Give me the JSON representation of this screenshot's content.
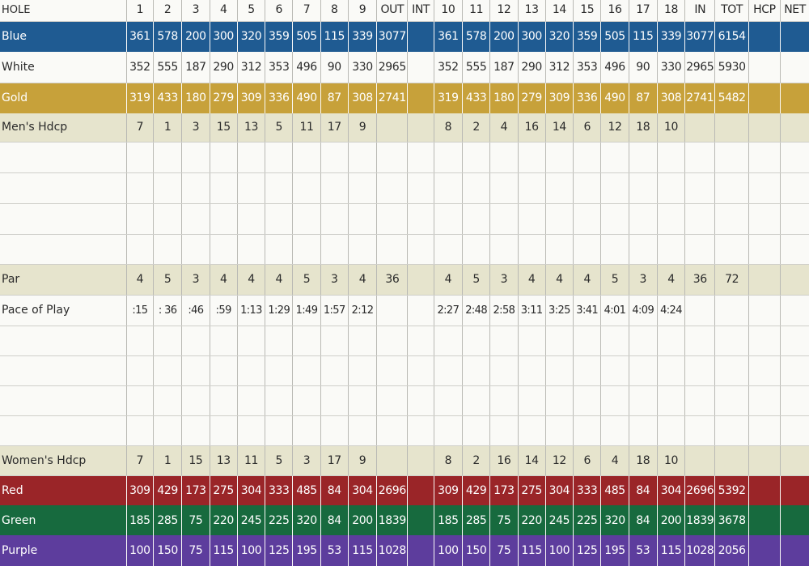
{
  "colors": {
    "blue": "#1f5b92",
    "gold": "#c7a13a",
    "red": "#9a2528",
    "green": "#176a3e",
    "purple": "#5d3d9d",
    "beige": "#e6e4cd",
    "white": "#fafaf7"
  },
  "header": [
    "HOLE",
    "1",
    "2",
    "3",
    "4",
    "5",
    "6",
    "7",
    "8",
    "9",
    "OUT",
    "INT",
    "10",
    "11",
    "12",
    "13",
    "14",
    "15",
    "16",
    "17",
    "18",
    "IN",
    "TOT",
    "HCP",
    "NET"
  ],
  "rows": [
    {
      "key": "blue",
      "style": "blue",
      "label": "Blue",
      "cells": [
        "361",
        "578",
        "200",
        "300",
        "320",
        "359",
        "505",
        "115",
        "339",
        "3077",
        "",
        "361",
        "578",
        "200",
        "300",
        "320",
        "359",
        "505",
        "115",
        "339",
        "3077",
        "6154",
        "",
        ""
      ]
    },
    {
      "key": "white",
      "style": "white",
      "label": "White",
      "cells": [
        "352",
        "555",
        "187",
        "290",
        "312",
        "353",
        "496",
        "90",
        "330",
        "2965",
        "",
        "352",
        "555",
        "187",
        "290",
        "312",
        "353",
        "496",
        "90",
        "330",
        "2965",
        "5930",
        "",
        ""
      ]
    },
    {
      "key": "gold",
      "style": "gold",
      "label": "Gold",
      "cells": [
        "319",
        "433",
        "180",
        "279",
        "309",
        "336",
        "490",
        "87",
        "308",
        "2741",
        "",
        "319",
        "433",
        "180",
        "279",
        "309",
        "336",
        "490",
        "87",
        "308",
        "2741",
        "5482",
        "",
        ""
      ]
    },
    {
      "key": "mens_hdcp",
      "style": "beige",
      "label": "Men's Hdcp",
      "cells": [
        "7",
        "1",
        "3",
        "15",
        "13",
        "5",
        "11",
        "17",
        "9",
        "",
        "",
        "8",
        "2",
        "4",
        "16",
        "14",
        "6",
        "12",
        "18",
        "10",
        "",
        "",
        "",
        ""
      ]
    },
    {
      "key": "blank_1",
      "style": "white",
      "label": "",
      "cells": [
        "",
        "",
        "",
        "",
        "",
        "",
        "",
        "",
        "",
        "",
        "",
        "",
        "",
        "",
        "",
        "",
        "",
        "",
        "",
        "",
        "",
        "",
        "",
        ""
      ]
    },
    {
      "key": "blank_2",
      "style": "white",
      "label": "",
      "cells": [
        "",
        "",
        "",
        "",
        "",
        "",
        "",
        "",
        "",
        "",
        "",
        "",
        "",
        "",
        "",
        "",
        "",
        "",
        "",
        "",
        "",
        "",
        "",
        ""
      ]
    },
    {
      "key": "blank_3",
      "style": "white",
      "label": "",
      "cells": [
        "",
        "",
        "",
        "",
        "",
        "",
        "",
        "",
        "",
        "",
        "",
        "",
        "",
        "",
        "",
        "",
        "",
        "",
        "",
        "",
        "",
        "",
        "",
        ""
      ]
    },
    {
      "key": "blank_4",
      "style": "white",
      "label": "",
      "cells": [
        "",
        "",
        "",
        "",
        "",
        "",
        "",
        "",
        "",
        "",
        "",
        "",
        "",
        "",
        "",
        "",
        "",
        "",
        "",
        "",
        "",
        "",
        "",
        ""
      ]
    },
    {
      "key": "par",
      "style": "beige",
      "label": "Par",
      "cells": [
        "4",
        "5",
        "3",
        "4",
        "4",
        "4",
        "5",
        "3",
        "4",
        "36",
        "",
        "4",
        "5",
        "3",
        "4",
        "4",
        "4",
        "5",
        "3",
        "4",
        "36",
        "72",
        "",
        ""
      ]
    },
    {
      "key": "pace",
      "style": "white",
      "label": "Pace of Play",
      "cells": [
        ":15",
        ": 36",
        ":46",
        ":59",
        "1:13",
        "1:29",
        "1:49",
        "1:57",
        "2:12",
        "",
        "",
        "2:27",
        "2:48",
        "2:58",
        "3:11",
        "3:25",
        "3:41",
        "4:01",
        "4:09",
        "4:24",
        "",
        "",
        "",
        ""
      ]
    },
    {
      "key": "blank_5",
      "style": "white",
      "label": "",
      "cells": [
        "",
        "",
        "",
        "",
        "",
        "",
        "",
        "",
        "",
        "",
        "",
        "",
        "",
        "",
        "",
        "",
        "",
        "",
        "",
        "",
        "",
        "",
        "",
        ""
      ]
    },
    {
      "key": "blank_6",
      "style": "white",
      "label": "",
      "cells": [
        "",
        "",
        "",
        "",
        "",
        "",
        "",
        "",
        "",
        "",
        "",
        "",
        "",
        "",
        "",
        "",
        "",
        "",
        "",
        "",
        "",
        "",
        "",
        ""
      ]
    },
    {
      "key": "blank_7",
      "style": "white",
      "label": "",
      "cells": [
        "",
        "",
        "",
        "",
        "",
        "",
        "",
        "",
        "",
        "",
        "",
        "",
        "",
        "",
        "",
        "",
        "",
        "",
        "",
        "",
        "",
        "",
        "",
        ""
      ]
    },
    {
      "key": "blank_8",
      "style": "white",
      "label": "",
      "cells": [
        "",
        "",
        "",
        "",
        "",
        "",
        "",
        "",
        "",
        "",
        "",
        "",
        "",
        "",
        "",
        "",
        "",
        "",
        "",
        "",
        "",
        "",
        "",
        ""
      ]
    },
    {
      "key": "womens_hdcp",
      "style": "beige",
      "label": "Women's Hdcp",
      "cells": [
        "7",
        "1",
        "15",
        "13",
        "11",
        "5",
        "3",
        "17",
        "9",
        "",
        "",
        "8",
        "2",
        "16",
        "14",
        "12",
        "6",
        "4",
        "18",
        "10",
        "",
        "",
        "",
        ""
      ]
    },
    {
      "key": "red",
      "style": "red",
      "label": "Red",
      "cells": [
        "309",
        "429",
        "173",
        "275",
        "304",
        "333",
        "485",
        "84",
        "304",
        "2696",
        "",
        "309",
        "429",
        "173",
        "275",
        "304",
        "333",
        "485",
        "84",
        "304",
        "2696",
        "5392",
        "",
        ""
      ]
    },
    {
      "key": "green",
      "style": "green",
      "label": "Green",
      "cells": [
        "185",
        "285",
        "75",
        "220",
        "245",
        "225",
        "320",
        "84",
        "200",
        "1839",
        "",
        "185",
        "285",
        "75",
        "220",
        "245",
        "225",
        "320",
        "84",
        "200",
        "1839",
        "3678",
        "",
        ""
      ]
    },
    {
      "key": "purple",
      "style": "purple",
      "label": "Purple",
      "cells": [
        "100",
        "150",
        "75",
        "115",
        "100",
        "125",
        "195",
        "53",
        "115",
        "1028",
        "",
        "100",
        "150",
        "75",
        "115",
        "100",
        "125",
        "195",
        "53",
        "115",
        "1028",
        "2056",
        "",
        ""
      ]
    }
  ]
}
